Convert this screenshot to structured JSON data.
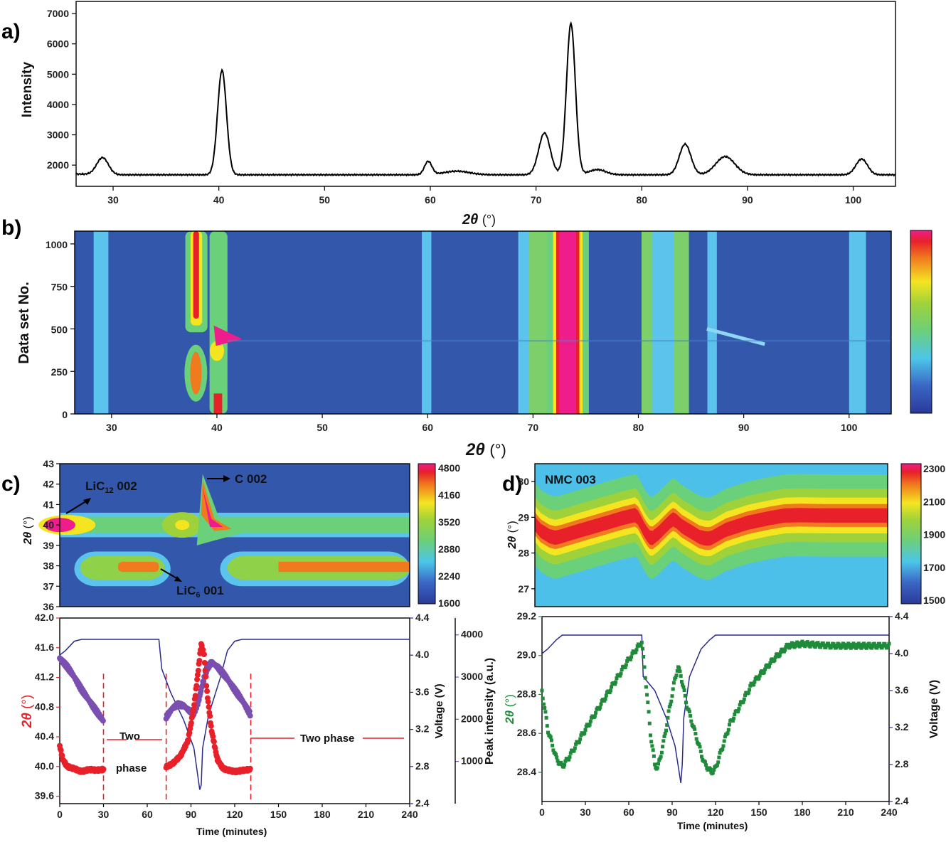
{
  "panels": {
    "a": "a)",
    "b": "b)",
    "c": "c)",
    "d": "d)"
  },
  "chart_data": [
    {
      "id": "a",
      "type": "line",
      "xlabel_main": "2θ",
      "xlabel_unit": "(°)",
      "ylabel": "Intensity",
      "xlim": [
        26.5,
        104
      ],
      "ylim": [
        1300,
        7400
      ],
      "xticks": [
        "30",
        "40",
        "50",
        "60",
        "70",
        "80",
        "90",
        "100"
      ],
      "yticks": [
        "2000",
        "3000",
        "4000",
        "5000",
        "6000",
        "7000"
      ],
      "baseline": 1680,
      "peaks": [
        {
          "x": 29.0,
          "h": 560,
          "w": 0.55
        },
        {
          "x": 40.3,
          "h": 3450,
          "w": 0.42
        },
        {
          "x": 59.8,
          "h": 440,
          "w": 0.35
        },
        {
          "x": 62.5,
          "h": 120,
          "w": 1.2
        },
        {
          "x": 70.8,
          "h": 1380,
          "w": 0.55
        },
        {
          "x": 73.3,
          "h": 4990,
          "w": 0.42
        },
        {
          "x": 75.8,
          "h": 170,
          "w": 0.8
        },
        {
          "x": 84.1,
          "h": 1010,
          "w": 0.55
        },
        {
          "x": 87.9,
          "h": 600,
          "w": 0.9
        },
        {
          "x": 100.8,
          "h": 520,
          "w": 0.55
        }
      ]
    },
    {
      "id": "b",
      "type": "heatmap",
      "xlabel_main": "2θ",
      "xlabel_unit": "(°)",
      "ylabel": "Data set No.",
      "xlim": [
        26.5,
        104
      ],
      "ylim": [
        0,
        1075
      ],
      "xticks": [
        "30",
        "40",
        "50",
        "60",
        "70",
        "80",
        "90",
        "100"
      ],
      "yticks": [
        "0",
        "250",
        "500",
        "750",
        "1000"
      ]
    },
    {
      "id": "c_top",
      "type": "heatmap",
      "ylabel_main": "2θ",
      "ylabel_unit": "(°)",
      "xlim": [
        0,
        240
      ],
      "ylim": [
        36,
        43
      ],
      "yticks": [
        "36",
        "37",
        "38",
        "39",
        "40",
        "41",
        "42",
        "43"
      ],
      "colorbar_ticks": [
        "1600",
        "2240",
        "2880",
        "3520",
        "4160",
        "4800"
      ],
      "annotations": [
        "LiC",
        "12",
        " 002",
        "C 002",
        "LiC",
        "6",
        " 001"
      ]
    },
    {
      "id": "c_bottom",
      "type": "line",
      "xlabel": "Time (minutes)",
      "y1label_main": "2θ",
      "y1label_unit": "(°)",
      "y2label": "Voltage (V)",
      "y3label": "Peak intensity (a.u.)",
      "xlim": [
        0,
        240
      ],
      "y1lim": [
        39.5,
        42.0
      ],
      "y2lim": [
        2.4,
        4.4
      ],
      "y3lim": [
        0,
        4400
      ],
      "xticks": [
        "0",
        "30",
        "60",
        "90",
        "120",
        "150",
        "180",
        "210",
        "240"
      ],
      "y1ticks": [
        "39.6",
        "40.0",
        "40.4",
        "40.8",
        "41.2",
        "41.6",
        "42.0"
      ],
      "y2ticks": [
        "2.4",
        "2.8",
        "3.2",
        "3.6",
        "4.0",
        "4.4"
      ],
      "y3ticks": [
        "1000",
        "2000",
        "3000",
        "4000"
      ],
      "annotations": [
        "Two",
        "phase",
        "Two phase"
      ],
      "voltage": [
        [
          0,
          4.0
        ],
        [
          4,
          4.05
        ],
        [
          10,
          4.15
        ],
        [
          15,
          4.17
        ],
        [
          68,
          4.17
        ],
        [
          70,
          3.85
        ],
        [
          76,
          3.6
        ],
        [
          85,
          3.3
        ],
        [
          92,
          3.0
        ],
        [
          96,
          2.55
        ],
        [
          97,
          2.6
        ],
        [
          98,
          3.0
        ],
        [
          102,
          3.35
        ],
        [
          110,
          3.75
        ],
        [
          115,
          4.05
        ],
        [
          120,
          4.15
        ],
        [
          125,
          4.17
        ],
        [
          240,
          4.17
        ]
      ],
      "two_theta": [
        [
          0,
          40.28
        ],
        [
          2,
          40.1
        ],
        [
          5,
          40.0
        ],
        [
          10,
          39.97
        ],
        [
          15,
          39.93
        ],
        [
          20,
          39.96
        ],
        [
          25,
          39.95
        ],
        [
          30,
          39.96
        ],
        [
          74,
          40.0
        ],
        [
          78,
          40.05
        ],
        [
          83,
          40.15
        ],
        [
          88,
          40.35
        ],
        [
          92,
          40.8
        ],
        [
          95,
          41.3
        ],
        [
          97,
          41.65
        ],
        [
          99,
          41.5
        ],
        [
          101,
          41.0
        ],
        [
          104,
          40.5
        ],
        [
          108,
          40.1
        ],
        [
          112,
          39.97
        ],
        [
          120,
          39.93
        ],
        [
          126,
          39.95
        ],
        [
          131,
          39.96
        ]
      ],
      "peak_intensity": [
        [
          0,
          3450
        ],
        [
          5,
          3250
        ],
        [
          10,
          3000
        ],
        [
          15,
          2700
        ],
        [
          20,
          2450
        ],
        [
          25,
          2200
        ],
        [
          28,
          2050
        ],
        [
          30,
          1950
        ],
        [
          73,
          2050
        ],
        [
          77,
          2250
        ],
        [
          81,
          2350
        ],
        [
          85,
          2320
        ],
        [
          89,
          2200
        ],
        [
          92,
          2150
        ],
        [
          95,
          2400
        ],
        [
          98,
          2850
        ],
        [
          101,
          3200
        ],
        [
          104,
          3350
        ],
        [
          108,
          3250
        ],
        [
          114,
          3000
        ],
        [
          120,
          2700
        ],
        [
          126,
          2400
        ],
        [
          131,
          2100
        ]
      ],
      "dashed_x": [
        30,
        73,
        131
      ]
    },
    {
      "id": "d_top",
      "type": "heatmap",
      "ylabel_main": "2θ",
      "ylabel_unit": "(°)",
      "xlim": [
        0,
        240
      ],
      "ylim": [
        26.5,
        30.5
      ],
      "yticks": [
        "27",
        "28",
        "29",
        "30"
      ],
      "colorbar_ticks": [
        "1500",
        "1700",
        "1900",
        "2100",
        "2300"
      ],
      "annotation": "NMC 003"
    },
    {
      "id": "d_bottom",
      "type": "line",
      "xlabel": "Time (minutes)",
      "y1label_main": "2θ",
      "y1label_unit": "(°)",
      "y2label": "Voltage (V)",
      "xlim": [
        0,
        240
      ],
      "y1lim": [
        28.25,
        29.2
      ],
      "y2lim": [
        2.4,
        4.4
      ],
      "xticks": [
        "0",
        "30",
        "60",
        "90",
        "120",
        "150",
        "180",
        "210",
        "240"
      ],
      "y1ticks": [
        "28.4",
        "28.6",
        "28.8",
        "29.0",
        "29.2"
      ],
      "y2ticks": [
        "2.4",
        "2.8",
        "3.2",
        "3.6",
        "4.0",
        "4.4"
      ],
      "voltage": [
        [
          0,
          4.0
        ],
        [
          4,
          4.05
        ],
        [
          10,
          4.15
        ],
        [
          14,
          4.2
        ],
        [
          68,
          4.2
        ],
        [
          69,
          4.2
        ],
        [
          70,
          3.75
        ],
        [
          78,
          3.6
        ],
        [
          86,
          3.3
        ],
        [
          92,
          3.0
        ],
        [
          96,
          2.6
        ],
        [
          97,
          2.8
        ],
        [
          98,
          3.3
        ],
        [
          102,
          3.75
        ],
        [
          110,
          4.05
        ],
        [
          116,
          4.15
        ],
        [
          120,
          4.2
        ],
        [
          240,
          4.2
        ]
      ],
      "two_theta": [
        [
          0,
          28.82
        ],
        [
          4,
          28.62
        ],
        [
          10,
          28.47
        ],
        [
          14,
          28.43
        ],
        [
          18,
          28.47
        ],
        [
          30,
          28.62
        ],
        [
          45,
          28.8
        ],
        [
          60,
          28.98
        ],
        [
          67,
          29.05
        ],
        [
          69,
          29.07
        ],
        [
          72,
          28.85
        ],
        [
          75,
          28.6
        ],
        [
          78,
          28.44
        ],
        [
          80,
          28.42
        ],
        [
          84,
          28.55
        ],
        [
          88,
          28.72
        ],
        [
          92,
          28.88
        ],
        [
          94,
          28.94
        ],
        [
          96,
          28.9
        ],
        [
          100,
          28.75
        ],
        [
          106,
          28.6
        ],
        [
          112,
          28.45
        ],
        [
          117,
          28.4
        ],
        [
          120,
          28.42
        ],
        [
          130,
          28.65
        ],
        [
          145,
          28.85
        ],
        [
          160,
          28.98
        ],
        [
          170,
          29.05
        ],
        [
          180,
          29.06
        ],
        [
          200,
          29.05
        ],
        [
          220,
          29.05
        ],
        [
          240,
          29.05
        ]
      ]
    }
  ]
}
